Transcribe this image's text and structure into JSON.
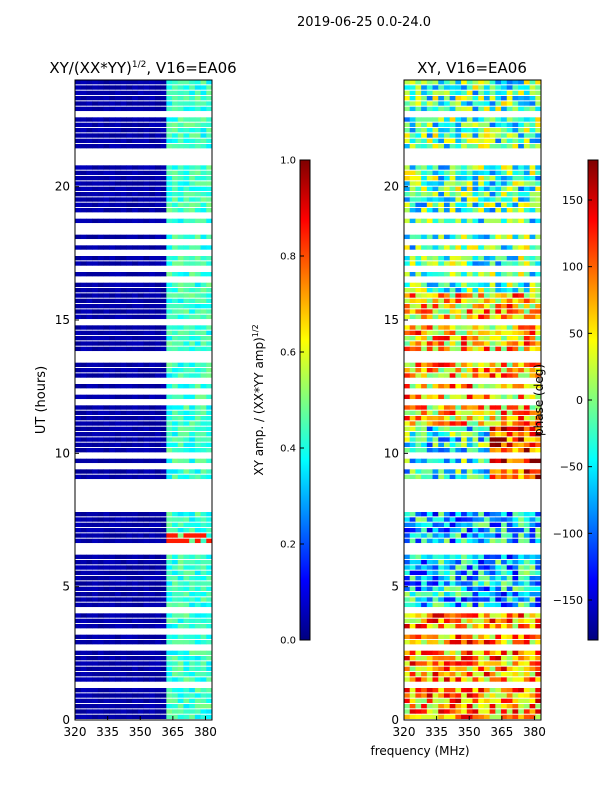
{
  "figure": {
    "suptitle": "2019-06-25 0.0-24.0",
    "xlabel": "frequency (MHz)"
  },
  "chart_data": [
    {
      "type": "heatmap",
      "title_main": "XY/(XX*YY)",
      "title_sup": "1/2",
      "title_rest": ", V16=EA06",
      "xlabel": "",
      "ylabel": "UT (hours)",
      "xlim": [
        320,
        383
      ],
      "ylim": [
        0,
        24
      ],
      "xticks": [
        320,
        335,
        350,
        365,
        380
      ],
      "yticks": [
        0,
        5,
        10,
        15,
        20
      ],
      "colorbar": {
        "label_main": "XY amp. / (XX*YY amp)",
        "label_sup": "1/2",
        "range": [
          0.0,
          1.0
        ],
        "ticks": [
          "0.0",
          "0.2",
          "0.4",
          "0.6",
          "0.8",
          "1.0"
        ],
        "colormap": "jet"
      },
      "colormap_colors": [
        "#00007f",
        "#0000ff",
        "#007fff",
        "#00ffff",
        "#7fff7f",
        "#ffff00",
        "#ff7f00",
        "#ff0000",
        "#7f0000"
      ]
    },
    {
      "type": "heatmap",
      "title": "XY, V16=EA06",
      "xlabel": "",
      "ylabel": "",
      "xlim": [
        320,
        383
      ],
      "ylim": [
        0,
        24
      ],
      "xticks": [
        320,
        335,
        350,
        365,
        380
      ],
      "yticks": [
        0,
        5,
        10,
        15,
        20
      ],
      "colorbar": {
        "label": "phase (deg)",
        "range": [
          -180,
          180
        ],
        "ticks": [
          "−150",
          "−100",
          "−50",
          "0",
          "50",
          "100",
          "150"
        ],
        "tick_values": [
          -150,
          -100,
          -50,
          0,
          50,
          100,
          150
        ],
        "colormap": "jet"
      }
    }
  ]
}
